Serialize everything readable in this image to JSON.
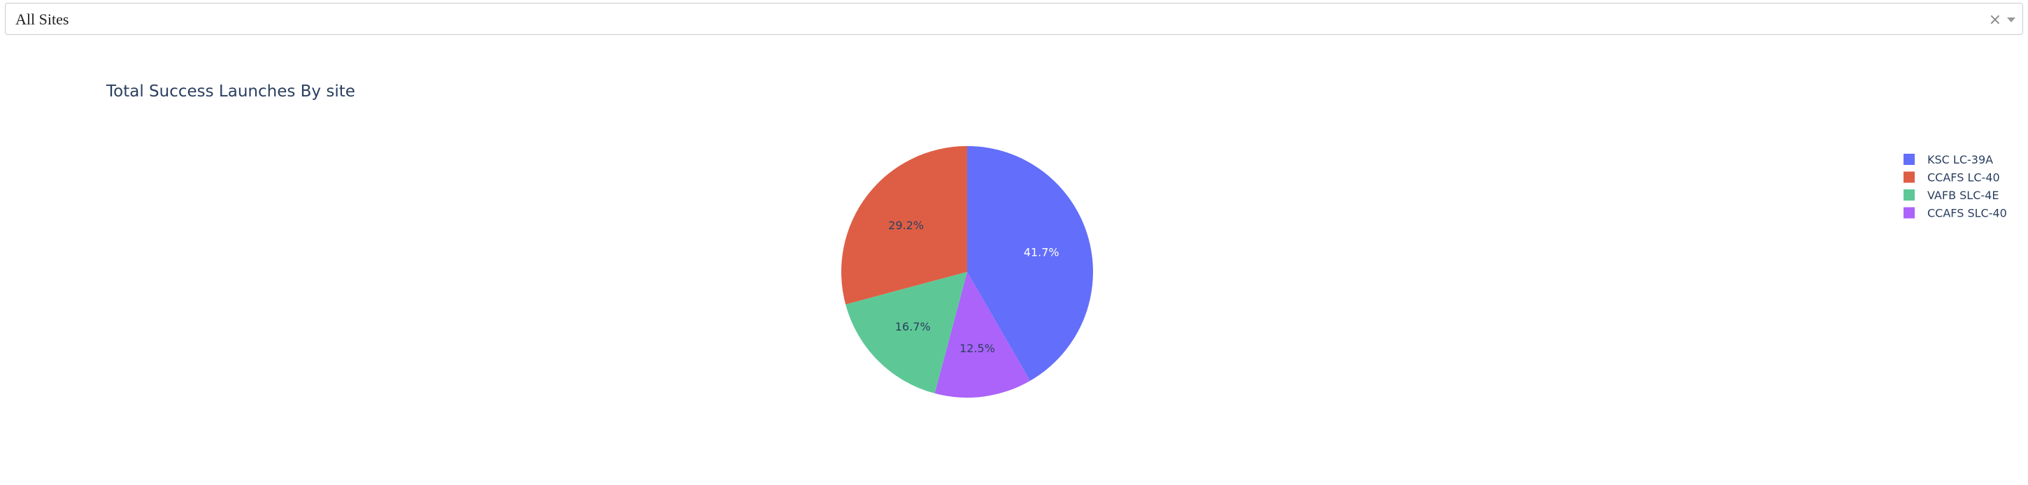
{
  "dropdown": {
    "selected": "All Sites",
    "clear_glyph": "×",
    "caret_icon": "chevron-down-icon"
  },
  "chart_data": {
    "type": "pie",
    "title": "Total Success Launches By site",
    "legend_position": "top-right",
    "slices": [
      {
        "name": "KSC LC-39A",
        "value": 41.7,
        "label": "41.7%",
        "color": "#636efa",
        "label_color": "#ffffff"
      },
      {
        "name": "CCAFS SLC-40",
        "value": 12.5,
        "label": "12.5%",
        "color": "#ab63fa",
        "label_color": "#2a3f5f"
      },
      {
        "name": "VAFB SLC-4E",
        "value": 16.7,
        "label": "16.7%",
        "color": "#5dc896",
        "label_color": "#2a3f5f"
      },
      {
        "name": "CCAFS LC-40",
        "value": 29.2,
        "label": "29.2%",
        "color": "#de5e45",
        "label_color": "#2a3f5f"
      }
    ],
    "legend": [
      {
        "name": "KSC LC-39A",
        "color": "#636efa"
      },
      {
        "name": "CCAFS LC-40",
        "color": "#de5e45"
      },
      {
        "name": "VAFB SLC-4E",
        "color": "#5dc896"
      },
      {
        "name": "CCAFS SLC-40",
        "color": "#ab63fa"
      }
    ]
  }
}
